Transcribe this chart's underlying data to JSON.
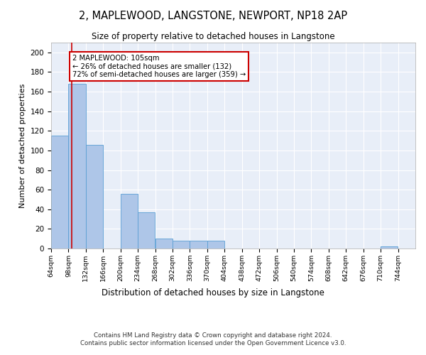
{
  "title": "2, MAPLEWOOD, LANGSTONE, NEWPORT, NP18 2AP",
  "subtitle": "Size of property relative to detached houses in Langstone",
  "xlabel": "Distribution of detached houses by size in Langstone",
  "ylabel": "Number of detached properties",
  "bar_color": "#aec6e8",
  "bar_edge_color": "#5a9fd4",
  "background_color": "#e8eef8",
  "grid_color": "#ffffff",
  "annotation_line_color": "#cc0000",
  "annotation_box_color": "#cc0000",
  "annotation_text": "2 MAPLEWOOD: 105sqm\n← 26% of detached houses are smaller (132)\n72% of semi-detached houses are larger (359) →",
  "property_size": 105,
  "categories": [
    "64sqm",
    "98sqm",
    "132sqm",
    "166sqm",
    "200sqm",
    "234sqm",
    "268sqm",
    "302sqm",
    "336sqm",
    "370sqm",
    "404sqm",
    "438sqm",
    "472sqm",
    "506sqm",
    "540sqm",
    "574sqm",
    "608sqm",
    "642sqm",
    "676sqm",
    "710sqm",
    "744sqm"
  ],
  "bin_edges": [
    64,
    98,
    132,
    166,
    200,
    234,
    268,
    302,
    336,
    370,
    404,
    438,
    472,
    506,
    540,
    574,
    608,
    642,
    676,
    710,
    744
  ],
  "bin_width": 34,
  "values": [
    115,
    168,
    106,
    0,
    56,
    37,
    10,
    8,
    8,
    8,
    0,
    0,
    0,
    0,
    0,
    0,
    0,
    0,
    0,
    2,
    0
  ],
  "ylim": [
    0,
    210
  ],
  "yticks": [
    0,
    20,
    40,
    60,
    80,
    100,
    120,
    140,
    160,
    180,
    200
  ],
  "footer_line1": "Contains HM Land Registry data © Crown copyright and database right 2024.",
  "footer_line2": "Contains public sector information licensed under the Open Government Licence v3.0."
}
